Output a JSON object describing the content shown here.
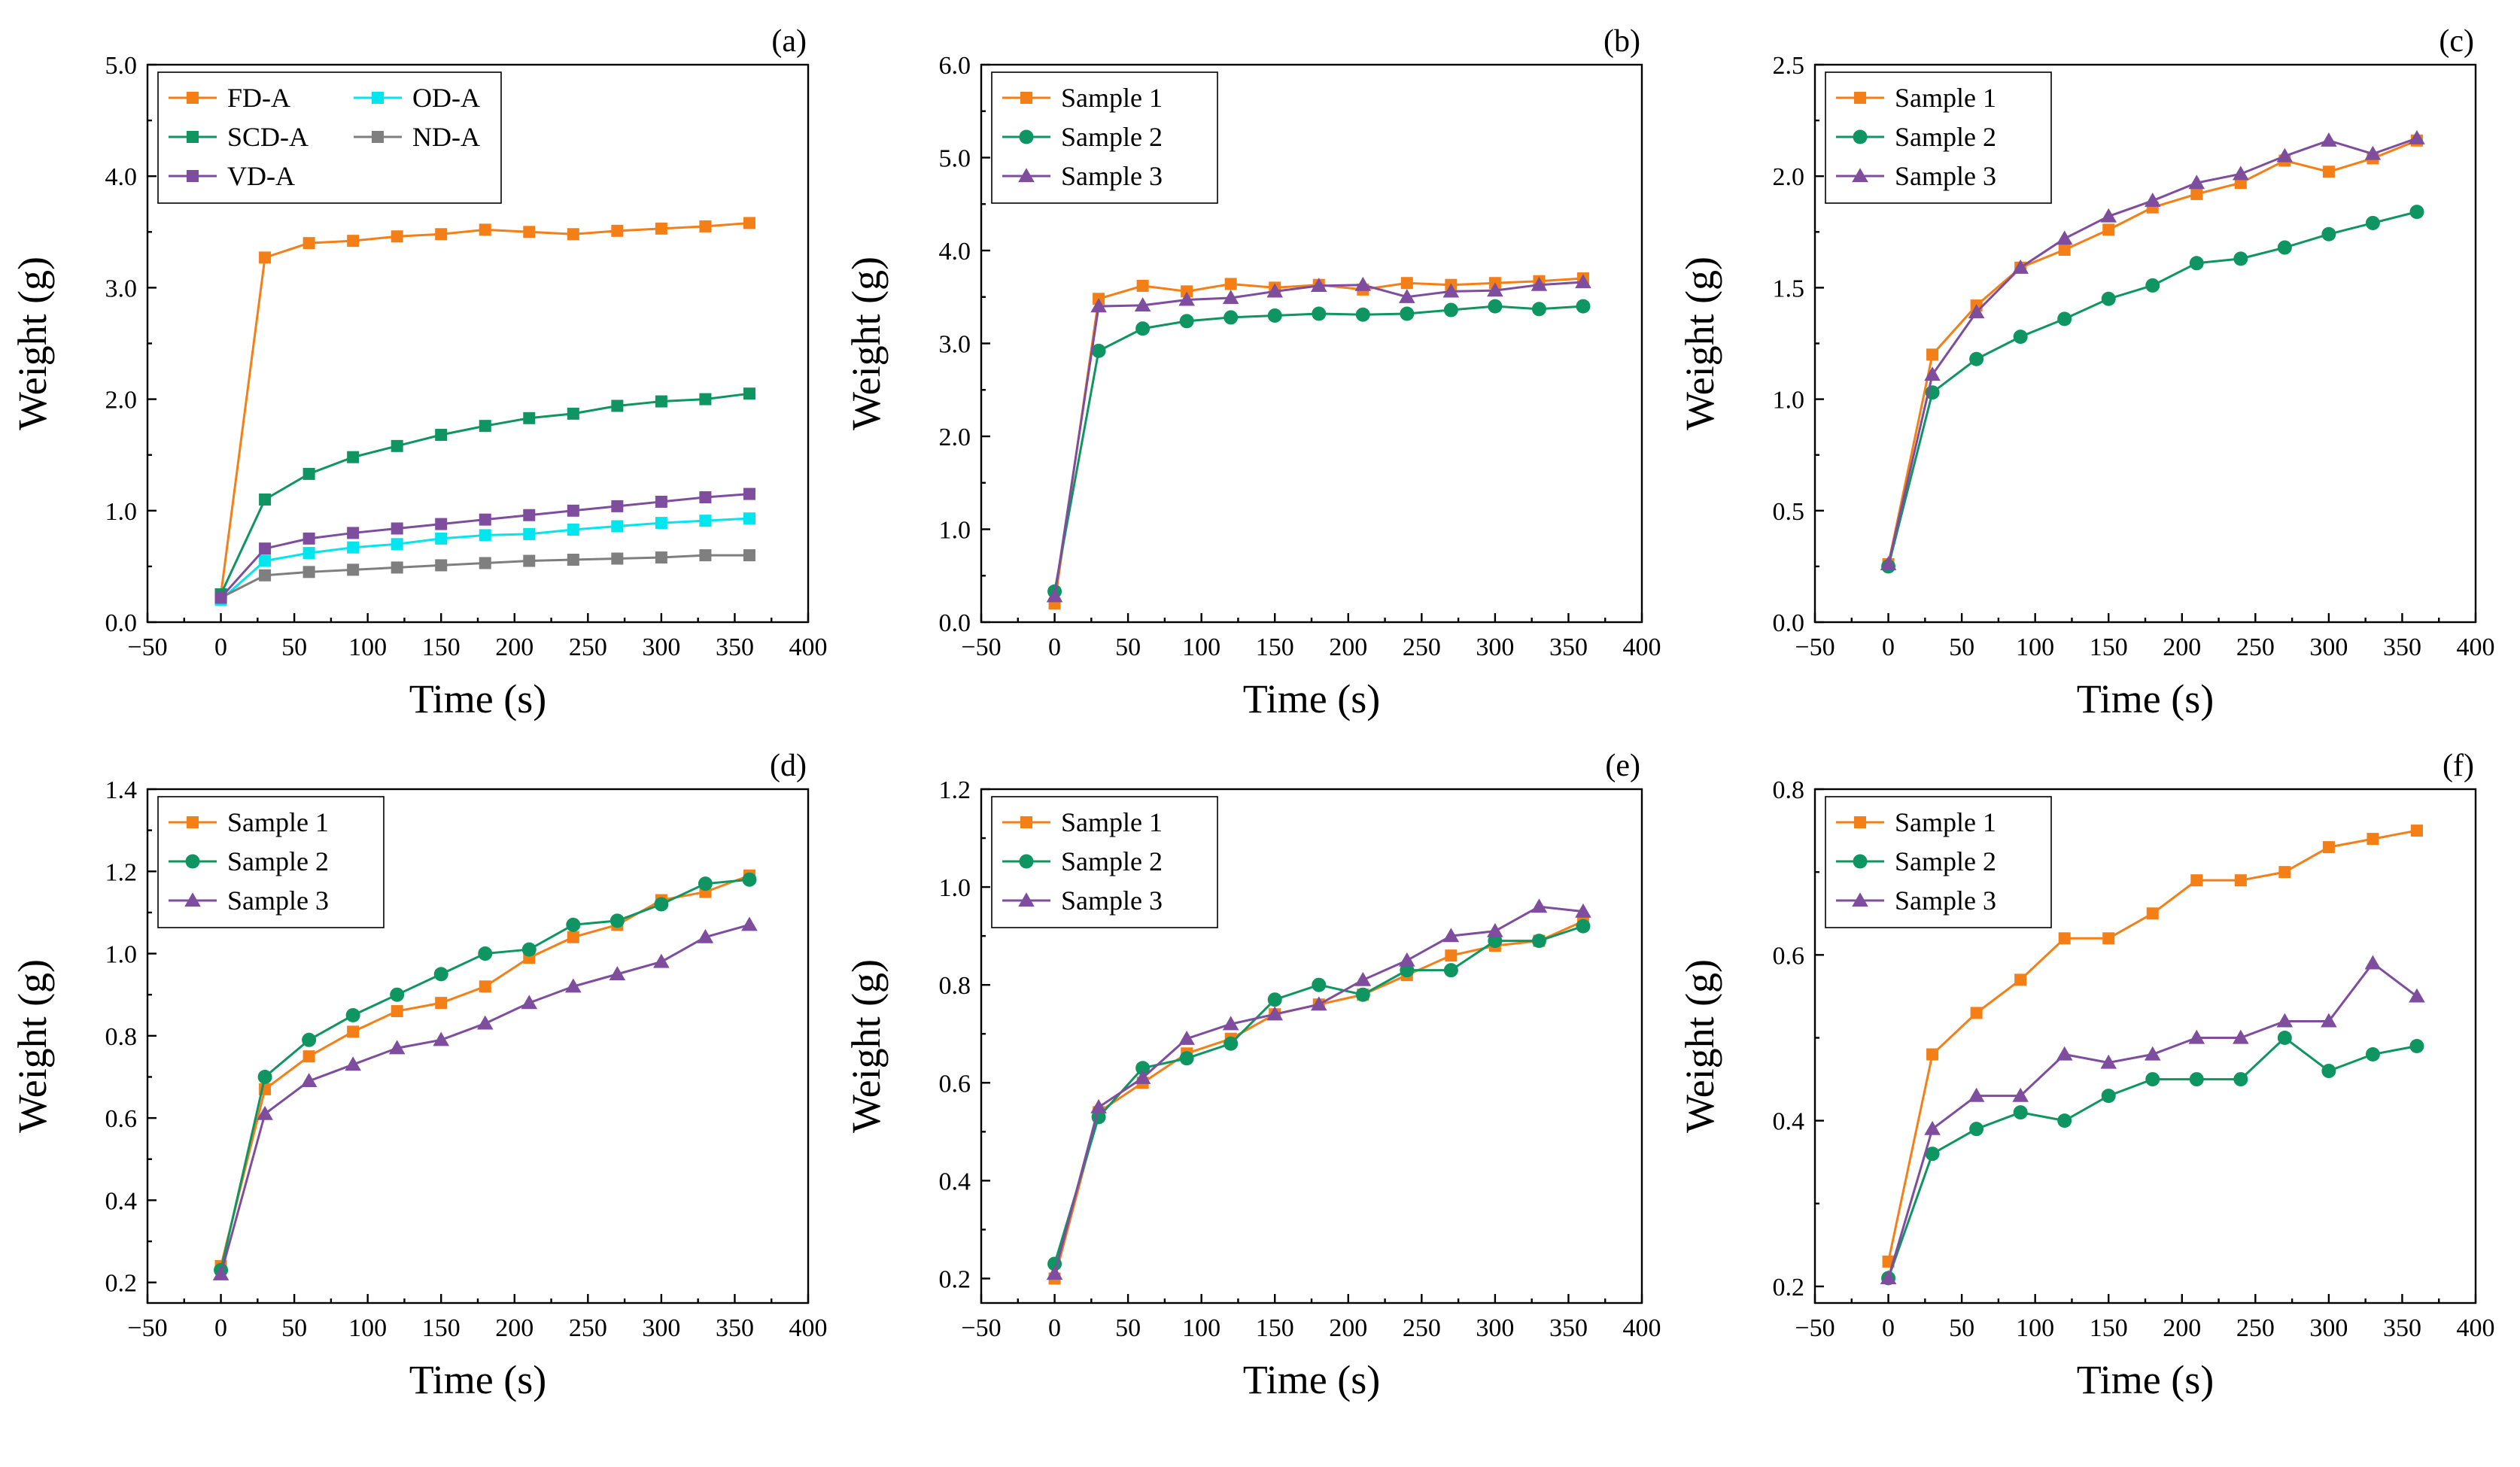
{
  "chart_data": [
    {
      "type": "line",
      "panel_label": "(a)",
      "xlabel": "Time (s)",
      "ylabel": "Weight (g)",
      "xlim": [
        -50,
        400
      ],
      "ylim": [
        0.0,
        5.0
      ],
      "xticks": [
        "−50",
        "0",
        "50",
        "100",
        "150",
        "200",
        "250",
        "300",
        "350",
        "400"
      ],
      "yticks": [
        "0.0",
        "1.0",
        "2.0",
        "3.0",
        "4.0",
        "5.0"
      ],
      "ytick_values": [
        0,
        1,
        2,
        3,
        4,
        5
      ],
      "legend_columns": 2,
      "x": [
        0,
        30,
        60,
        90,
        120,
        150,
        180,
        210,
        240,
        270,
        300,
        330,
        360
      ],
      "series": [
        {
          "name": "FD-A",
          "color": "#F57F17",
          "marker": "square",
          "values": [
            0.25,
            3.27,
            3.4,
            3.42,
            3.46,
            3.48,
            3.52,
            3.5,
            3.48,
            3.51,
            3.53,
            3.55,
            3.58
          ]
        },
        {
          "name": "OD-A",
          "color": "#00E5EE",
          "marker": "square",
          "values": [
            0.2,
            0.55,
            0.62,
            0.67,
            0.7,
            0.75,
            0.78,
            0.79,
            0.83,
            0.86,
            0.89,
            0.91,
            0.93
          ]
        },
        {
          "name": "SCD-A",
          "color": "#0E9561",
          "marker": "square",
          "values": [
            0.25,
            1.1,
            1.33,
            1.48,
            1.58,
            1.68,
            1.76,
            1.83,
            1.87,
            1.94,
            1.98,
            2.0,
            2.05
          ]
        },
        {
          "name": "ND-A",
          "color": "#7F7F7F",
          "marker": "square",
          "values": [
            0.22,
            0.42,
            0.45,
            0.47,
            0.49,
            0.51,
            0.53,
            0.55,
            0.56,
            0.57,
            0.58,
            0.6,
            0.6
          ]
        },
        {
          "name": "VD-A",
          "color": "#7E4D9E",
          "marker": "square",
          "values": [
            0.22,
            0.66,
            0.75,
            0.8,
            0.84,
            0.88,
            0.92,
            0.96,
            1.0,
            1.04,
            1.08,
            1.12,
            1.15
          ]
        }
      ]
    },
    {
      "type": "line",
      "panel_label": "(b)",
      "xlabel": "Time (s)",
      "ylabel": "Weight (g)",
      "xlim": [
        -50,
        400
      ],
      "ylim": [
        0.0,
        6.0
      ],
      "xticks": [
        "−50",
        "0",
        "50",
        "100",
        "150",
        "200",
        "250",
        "300",
        "350",
        "400"
      ],
      "yticks": [
        "0.0",
        "1.0",
        "2.0",
        "3.0",
        "4.0",
        "5.0",
        "6.0"
      ],
      "ytick_values": [
        0,
        1,
        2,
        3,
        4,
        5,
        6
      ],
      "legend_columns": 1,
      "x": [
        0,
        30,
        60,
        90,
        120,
        150,
        180,
        210,
        240,
        270,
        300,
        330,
        360
      ],
      "series": [
        {
          "name": "Sample 1",
          "color": "#F57F17",
          "marker": "square",
          "values": [
            0.2,
            3.48,
            3.62,
            3.56,
            3.64,
            3.6,
            3.63,
            3.58,
            3.65,
            3.63,
            3.65,
            3.67,
            3.7
          ]
        },
        {
          "name": "Sample 2",
          "color": "#0E9561",
          "marker": "circle",
          "values": [
            0.33,
            2.92,
            3.16,
            3.24,
            3.28,
            3.3,
            3.32,
            3.31,
            3.32,
            3.36,
            3.4,
            3.37,
            3.4
          ]
        },
        {
          "name": "Sample 3",
          "color": "#7E4D9E",
          "marker": "triangle",
          "values": [
            0.28,
            3.4,
            3.41,
            3.47,
            3.49,
            3.56,
            3.62,
            3.63,
            3.5,
            3.56,
            3.57,
            3.63,
            3.66
          ]
        }
      ]
    },
    {
      "type": "line",
      "panel_label": "(c)",
      "xlabel": "Time (s)",
      "ylabel": "Weight (g)",
      "xlim": [
        -50,
        400
      ],
      "ylim": [
        0.0,
        2.5
      ],
      "xticks": [
        "−50",
        "0",
        "50",
        "100",
        "150",
        "200",
        "250",
        "300",
        "350",
        "400"
      ],
      "yticks": [
        "0.0",
        "0.5",
        "1.0",
        "1.5",
        "2.0",
        "2.5"
      ],
      "ytick_values": [
        0,
        0.5,
        1.0,
        1.5,
        2.0,
        2.5
      ],
      "legend_columns": 1,
      "x": [
        0,
        30,
        60,
        90,
        120,
        150,
        180,
        210,
        240,
        270,
        300,
        330,
        360
      ],
      "series": [
        {
          "name": "Sample 1",
          "color": "#F57F17",
          "marker": "square",
          "values": [
            0.26,
            1.2,
            1.42,
            1.59,
            1.67,
            1.76,
            1.86,
            1.92,
            1.97,
            2.07,
            2.02,
            2.08,
            2.16
          ]
        },
        {
          "name": "Sample 2",
          "color": "#0E9561",
          "marker": "circle",
          "values": [
            0.25,
            1.03,
            1.18,
            1.28,
            1.36,
            1.45,
            1.51,
            1.61,
            1.63,
            1.68,
            1.74,
            1.79,
            1.84
          ]
        },
        {
          "name": "Sample 3",
          "color": "#7E4D9E",
          "marker": "triangle",
          "values": [
            0.26,
            1.11,
            1.39,
            1.59,
            1.72,
            1.82,
            1.89,
            1.97,
            2.01,
            2.09,
            2.16,
            2.1,
            2.17
          ]
        }
      ]
    },
    {
      "type": "line",
      "panel_label": "(d)",
      "xlabel": "Time (s)",
      "ylabel": "Weight (g)",
      "xlim": [
        -50,
        400
      ],
      "ylim": [
        0.15,
        1.4
      ],
      "xticks": [
        "−50",
        "0",
        "50",
        "100",
        "150",
        "200",
        "250",
        "300",
        "350",
        "400"
      ],
      "yticks": [
        "0.2",
        "0.4",
        "0.6",
        "0.8",
        "1.0",
        "1.2",
        "1.4"
      ],
      "ytick_values": [
        0.2,
        0.4,
        0.6,
        0.8,
        1.0,
        1.2,
        1.4
      ],
      "legend_columns": 1,
      "x": [
        0,
        30,
        60,
        90,
        120,
        150,
        180,
        210,
        240,
        270,
        300,
        330,
        360
      ],
      "series": [
        {
          "name": "Sample 1",
          "color": "#F57F17",
          "marker": "square",
          "values": [
            0.24,
            0.67,
            0.75,
            0.81,
            0.86,
            0.88,
            0.92,
            0.99,
            1.04,
            1.07,
            1.13,
            1.15,
            1.19
          ]
        },
        {
          "name": "Sample 2",
          "color": "#0E9561",
          "marker": "circle",
          "values": [
            0.23,
            0.7,
            0.79,
            0.85,
            0.9,
            0.95,
            1.0,
            1.01,
            1.07,
            1.08,
            1.12,
            1.17,
            1.18
          ]
        },
        {
          "name": "Sample 3",
          "color": "#7E4D9E",
          "marker": "triangle",
          "values": [
            0.22,
            0.61,
            0.69,
            0.73,
            0.77,
            0.79,
            0.83,
            0.88,
            0.92,
            0.95,
            0.98,
            1.04,
            1.07
          ]
        }
      ]
    },
    {
      "type": "line",
      "panel_label": "(e)",
      "xlabel": "Time (s)",
      "ylabel": "Weight (g)",
      "xlim": [
        -50,
        400
      ],
      "ylim": [
        0.15,
        1.2
      ],
      "xticks": [
        "−50",
        "0",
        "50",
        "100",
        "150",
        "200",
        "250",
        "300",
        "350",
        "400"
      ],
      "yticks": [
        "0.2",
        "0.4",
        "0.6",
        "0.8",
        "1.0",
        "1.2"
      ],
      "ytick_values": [
        0.2,
        0.4,
        0.6,
        0.8,
        1.0,
        1.2
      ],
      "legend_columns": 1,
      "x": [
        0,
        30,
        60,
        90,
        120,
        150,
        180,
        210,
        240,
        270,
        300,
        330,
        360
      ],
      "series": [
        {
          "name": "Sample 1",
          "color": "#F57F17",
          "marker": "square",
          "values": [
            0.2,
            0.54,
            0.6,
            0.66,
            0.69,
            0.74,
            0.76,
            0.78,
            0.82,
            0.86,
            0.88,
            0.89,
            0.93
          ]
        },
        {
          "name": "Sample 2",
          "color": "#0E9561",
          "marker": "circle",
          "values": [
            0.23,
            0.53,
            0.63,
            0.65,
            0.68,
            0.77,
            0.8,
            0.78,
            0.83,
            0.83,
            0.89,
            0.89,
            0.92
          ]
        },
        {
          "name": "Sample 3",
          "color": "#7E4D9E",
          "marker": "triangle",
          "values": [
            0.21,
            0.55,
            0.61,
            0.69,
            0.72,
            0.74,
            0.76,
            0.81,
            0.85,
            0.9,
            0.91,
            0.96,
            0.95
          ]
        }
      ]
    },
    {
      "type": "line",
      "panel_label": "(f)",
      "xlabel": "Time (s)",
      "ylabel": "Weight (g)",
      "xlim": [
        -50,
        400
      ],
      "ylim": [
        0.18,
        0.8
      ],
      "xticks": [
        "−50",
        "0",
        "50",
        "100",
        "150",
        "200",
        "250",
        "300",
        "350",
        "400"
      ],
      "yticks": [
        "0.2",
        "0.4",
        "0.6",
        "0.8"
      ],
      "ytick_values": [
        0.2,
        0.4,
        0.6,
        0.8
      ],
      "legend_columns": 1,
      "x": [
        0,
        30,
        60,
        90,
        120,
        150,
        180,
        210,
        240,
        270,
        300,
        330,
        360
      ],
      "series": [
        {
          "name": "Sample 1",
          "color": "#F57F17",
          "marker": "square",
          "values": [
            0.23,
            0.48,
            0.53,
            0.57,
            0.62,
            0.62,
            0.65,
            0.69,
            0.69,
            0.7,
            0.73,
            0.74,
            0.75
          ]
        },
        {
          "name": "Sample 2",
          "color": "#0E9561",
          "marker": "circle",
          "values": [
            0.21,
            0.36,
            0.39,
            0.41,
            0.4,
            0.43,
            0.45,
            0.45,
            0.45,
            0.5,
            0.46,
            0.48,
            0.49
          ]
        },
        {
          "name": "Sample 3",
          "color": "#7E4D9E",
          "marker": "triangle",
          "values": [
            0.21,
            0.39,
            0.43,
            0.43,
            0.48,
            0.47,
            0.48,
            0.5,
            0.5,
            0.52,
            0.52,
            0.59,
            0.55
          ]
        }
      ]
    }
  ]
}
